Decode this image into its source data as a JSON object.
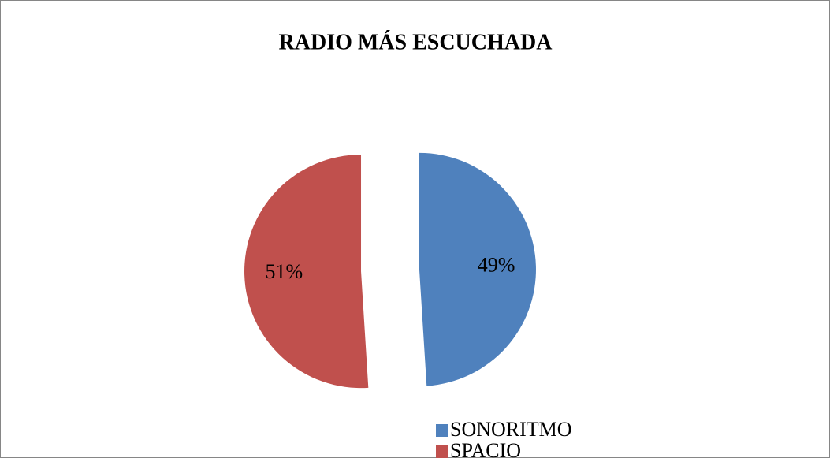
{
  "chart_data": {
    "type": "pie",
    "title": "RADIO MÁS ESCUCHADA",
    "categories": [
      "SONORITMO",
      "SPACIO"
    ],
    "values": [
      49,
      51
    ],
    "value_labels": [
      "49%",
      "51%"
    ],
    "colors": [
      "#4f81bd",
      "#c0504d"
    ],
    "exploded": true,
    "legend": "bottom-right"
  }
}
